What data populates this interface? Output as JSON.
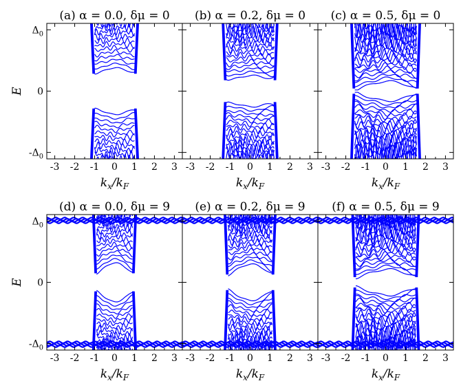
{
  "figure": {
    "y_axis_label": "E",
    "x_axis_label": "k_x/k_F",
    "x_tick_labels": [
      "-3",
      "-2",
      "-1",
      "0",
      "1",
      "2",
      "3"
    ],
    "y_tick_labels": [
      "Δ0",
      "0",
      "-Δ0"
    ]
  },
  "colors": {
    "bands": "#0000ff",
    "axes": "#000000"
  },
  "chart_data": [
    {
      "type": "line",
      "title": "(a) α = 0.0, δμ = 0",
      "xlabel": "k_x/k_F",
      "ylabel": "E",
      "xlim": [
        -3.4,
        3.4
      ],
      "ylim": [
        -1.05,
        1.05
      ],
      "alpha": 0.0,
      "delta_mu": 0,
      "band_edge_kx": 1.0,
      "gap_min": 0.25,
      "gap_center": 0.36,
      "gap_edge": 0.28,
      "bulk_continuum": false,
      "n_bands": 12
    },
    {
      "type": "line",
      "title": "(b) α = 0.2, δμ = 0",
      "xlabel": "k_x/k_F",
      "ylabel": "E",
      "xlim": [
        -3.4,
        3.4
      ],
      "ylim": [
        -1.05,
        1.05
      ],
      "alpha": 0.2,
      "delta_mu": 0,
      "band_edge_kx": 1.2,
      "gap_min": 0.15,
      "gap_center": 0.24,
      "gap_edge": 0.2,
      "bulk_continuum": false,
      "n_bands": 16
    },
    {
      "type": "line",
      "title": "(c) α = 0.5, δμ = 0",
      "xlabel": "k_x/k_F",
      "ylabel": "E",
      "xlim": [
        -3.4,
        3.4
      ],
      "ylim": [
        -1.05,
        1.05
      ],
      "alpha": 0.5,
      "delta_mu": 0,
      "band_edge_kx": 1.55,
      "gap_min": 0.02,
      "gap_center": 0.15,
      "gap_edge": 0.02,
      "bulk_continuum": false,
      "n_bands": 20
    },
    {
      "type": "line",
      "title": "(d) α = 0.0, δμ = 9",
      "xlabel": "k_x/k_F",
      "ylabel": "E",
      "xlim": [
        -3.4,
        3.4
      ],
      "ylim": [
        -1.05,
        1.05
      ],
      "alpha": 0.0,
      "delta_mu": 9,
      "band_edge_kx": 0.9,
      "gap_min": 0.12,
      "gap_center": 0.3,
      "gap_edge": 0.14,
      "bulk_continuum": true,
      "n_bands": 14
    },
    {
      "type": "line",
      "title": "(e) α = 0.2, δμ = 9",
      "xlabel": "k_x/k_F",
      "ylabel": "E",
      "xlim": [
        -3.4,
        3.4
      ],
      "ylim": [
        -1.05,
        1.05
      ],
      "alpha": 0.2,
      "delta_mu": 9,
      "band_edge_kx": 1.1,
      "gap_min": 0.1,
      "gap_center": 0.28,
      "gap_edge": 0.12,
      "bulk_continuum": true,
      "n_bands": 16
    },
    {
      "type": "line",
      "title": "(f) α = 0.5, δμ = 9",
      "xlabel": "k_x/k_F",
      "ylabel": "E",
      "xlim": [
        -3.4,
        3.4
      ],
      "ylim": [
        -1.05,
        1.05
      ],
      "alpha": 0.5,
      "delta_mu": 9,
      "band_edge_kx": 1.5,
      "gap_min": 0.06,
      "gap_center": 0.2,
      "gap_edge": 0.08,
      "bulk_continuum": true,
      "n_bands": 20
    }
  ]
}
